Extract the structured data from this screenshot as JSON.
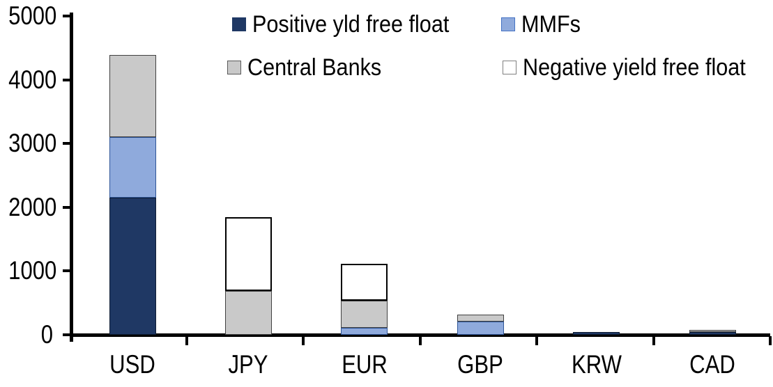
{
  "chart_data": {
    "type": "bar",
    "stacked": true,
    "title": "",
    "xlabel": "",
    "ylabel": "",
    "grid": false,
    "categories": [
      "USD",
      "JPY",
      "EUR",
      "GBP",
      "KRW",
      "CAD"
    ],
    "series": [
      {
        "name": "Positive yld free float",
        "color": "#1F3864",
        "border_color": "#0D1B33",
        "marker_border": "#1F3864",
        "values": [
          2150,
          0,
          0,
          0,
          45,
          45
        ]
      },
      {
        "name": "MMFs",
        "color": "#8FAADC",
        "border_color": "#2E5597",
        "marker_border": "#4472C4",
        "values": [
          950,
          0,
          110,
          210,
          0,
          0
        ]
      },
      {
        "name": "Central Banks",
        "color": "#C9C9C9",
        "border_color": "#404040",
        "marker_border": "#595959",
        "values": [
          1290,
          690,
          420,
          110,
          0,
          30
        ]
      },
      {
        "name": "Negative yield free float",
        "color": "#FFFFFF",
        "border_color": "#000000",
        "marker_border": "#808080",
        "values": [
          0,
          1150,
          580,
          0,
          0,
          0
        ]
      }
    ],
    "ylim": [
      0,
      5000
    ],
    "yticks": [
      0,
      1000,
      2000,
      3000,
      4000,
      5000
    ],
    "ytick_labels": [
      "0",
      "1000",
      "2000",
      "3000",
      "4000",
      "5000"
    ],
    "legend_position": "top",
    "legend_rows": [
      [
        "Positive yld free float",
        "MMFs"
      ],
      [
        "Central Banks",
        "Negative yield free float"
      ]
    ]
  },
  "colors": {
    "axis": "#000000",
    "background": "#FFFFFF",
    "text": "#000000"
  }
}
